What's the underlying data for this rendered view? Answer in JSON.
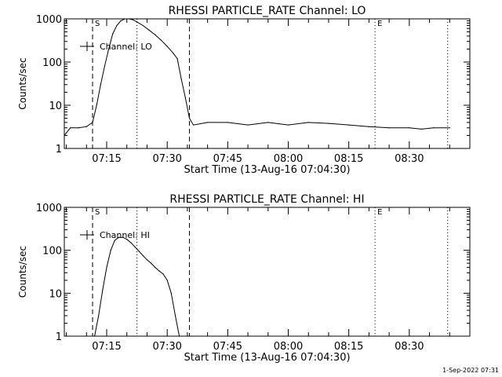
{
  "footer": {
    "timestamp": "1-Sep-2022 07:31"
  },
  "chart_data": [
    {
      "type": "line",
      "title": "RHESSI PARTICLE_RATE Channel: LO",
      "xlabel": "Start Time (13-Aug-16 07:04:30)",
      "ylabel": "Counts/sec",
      "yscale": "log",
      "ylim": [
        1,
        1000
      ],
      "xlim": [
        "07:04:30",
        "08:45:00"
      ],
      "x_ticks": [
        "07:15",
        "07:30",
        "07:45",
        "08:00",
        "08:15",
        "08:30"
      ],
      "y_ticks": [
        "1",
        "10",
        "100",
        "1000"
      ],
      "legend": {
        "position": "top-left",
        "entries": [
          "Channel: LO"
        ]
      },
      "markers": [
        {
          "label": "S",
          "time": "07:11:30",
          "style": "dashed"
        },
        {
          "label": "",
          "time": "07:22:30",
          "style": "dotted"
        },
        {
          "label": "",
          "time": "07:35:30",
          "style": "dashed"
        },
        {
          "label": "E",
          "time": "08:21:30",
          "style": "dotted"
        },
        {
          "label": "",
          "time": "08:39:30",
          "style": "dotted"
        }
      ],
      "series": [
        {
          "name": "Channel: LO",
          "x": [
            "07:04:30",
            "07:06:00",
            "07:08:00",
            "07:10:00",
            "07:11:30",
            "07:12:30",
            "07:13:30",
            "07:14:30",
            "07:15:30",
            "07:16:30",
            "07:17:30",
            "07:18:30",
            "07:19:30",
            "07:20:30",
            "07:21:30",
            "07:22:30",
            "07:24:00",
            "07:25:30",
            "07:27:00",
            "07:28:30",
            "07:30:00",
            "07:31:30",
            "07:32:30",
            "07:33:30",
            "07:34:30",
            "07:35:30",
            "07:36:30",
            "07:40:00",
            "07:45:00",
            "07:50:00",
            "07:55:00",
            "08:00:00",
            "08:05:00",
            "08:10:00",
            "08:15:00",
            "08:20:00",
            "08:25:00",
            "08:30:00",
            "08:33:00",
            "08:36:00",
            "08:40:00"
          ],
          "y": [
            2.0,
            3.0,
            3.0,
            3.2,
            4.0,
            10,
            30,
            80,
            200,
            450,
            700,
            900,
            1000,
            1000,
            950,
            850,
            700,
            550,
            430,
            320,
            230,
            160,
            120,
            40,
            15,
            5,
            3.5,
            4.0,
            4.0,
            3.5,
            4.0,
            3.5,
            4.0,
            3.8,
            3.5,
            3.2,
            3.0,
            3.0,
            2.8,
            3.0,
            3.0
          ]
        }
      ]
    },
    {
      "type": "line",
      "title": "RHESSI PARTICLE_RATE Channel: HI",
      "xlabel": "Start Time (13-Aug-16 07:04:30)",
      "ylabel": "Counts/sec",
      "yscale": "log",
      "ylim": [
        1,
        1000
      ],
      "xlim": [
        "07:04:30",
        "08:45:00"
      ],
      "x_ticks": [
        "07:15",
        "07:30",
        "07:45",
        "08:00",
        "08:15",
        "08:30"
      ],
      "y_ticks": [
        "1",
        "10",
        "100",
        "1000"
      ],
      "legend": {
        "position": "top-left",
        "entries": [
          "Channel: HI"
        ]
      },
      "markers": [
        {
          "label": "S",
          "time": "07:11:30",
          "style": "dashed"
        },
        {
          "label": "",
          "time": "07:22:30",
          "style": "dotted"
        },
        {
          "label": "",
          "time": "07:35:30",
          "style": "dashed"
        },
        {
          "label": "E",
          "time": "08:21:30",
          "style": "dotted"
        },
        {
          "label": "",
          "time": "08:39:30",
          "style": "dotted"
        }
      ],
      "series": [
        {
          "name": "Channel: HI",
          "x": [
            "07:12:00",
            "07:13:00",
            "07:14:00",
            "07:15:00",
            "07:16:00",
            "07:17:00",
            "07:18:00",
            "07:19:00",
            "07:20:00",
            "07:21:00",
            "07:22:00",
            "07:23:00",
            "07:24:00",
            "07:25:00",
            "07:26:00",
            "07:27:00",
            "07:28:00",
            "07:29:00",
            "07:30:00",
            "07:31:00",
            "07:32:00",
            "07:33:00"
          ],
          "y": [
            1.0,
            3,
            12,
            40,
            100,
            170,
            200,
            200,
            180,
            150,
            120,
            95,
            75,
            60,
            50,
            40,
            33,
            28,
            20,
            10,
            3,
            1.0
          ]
        }
      ]
    }
  ]
}
